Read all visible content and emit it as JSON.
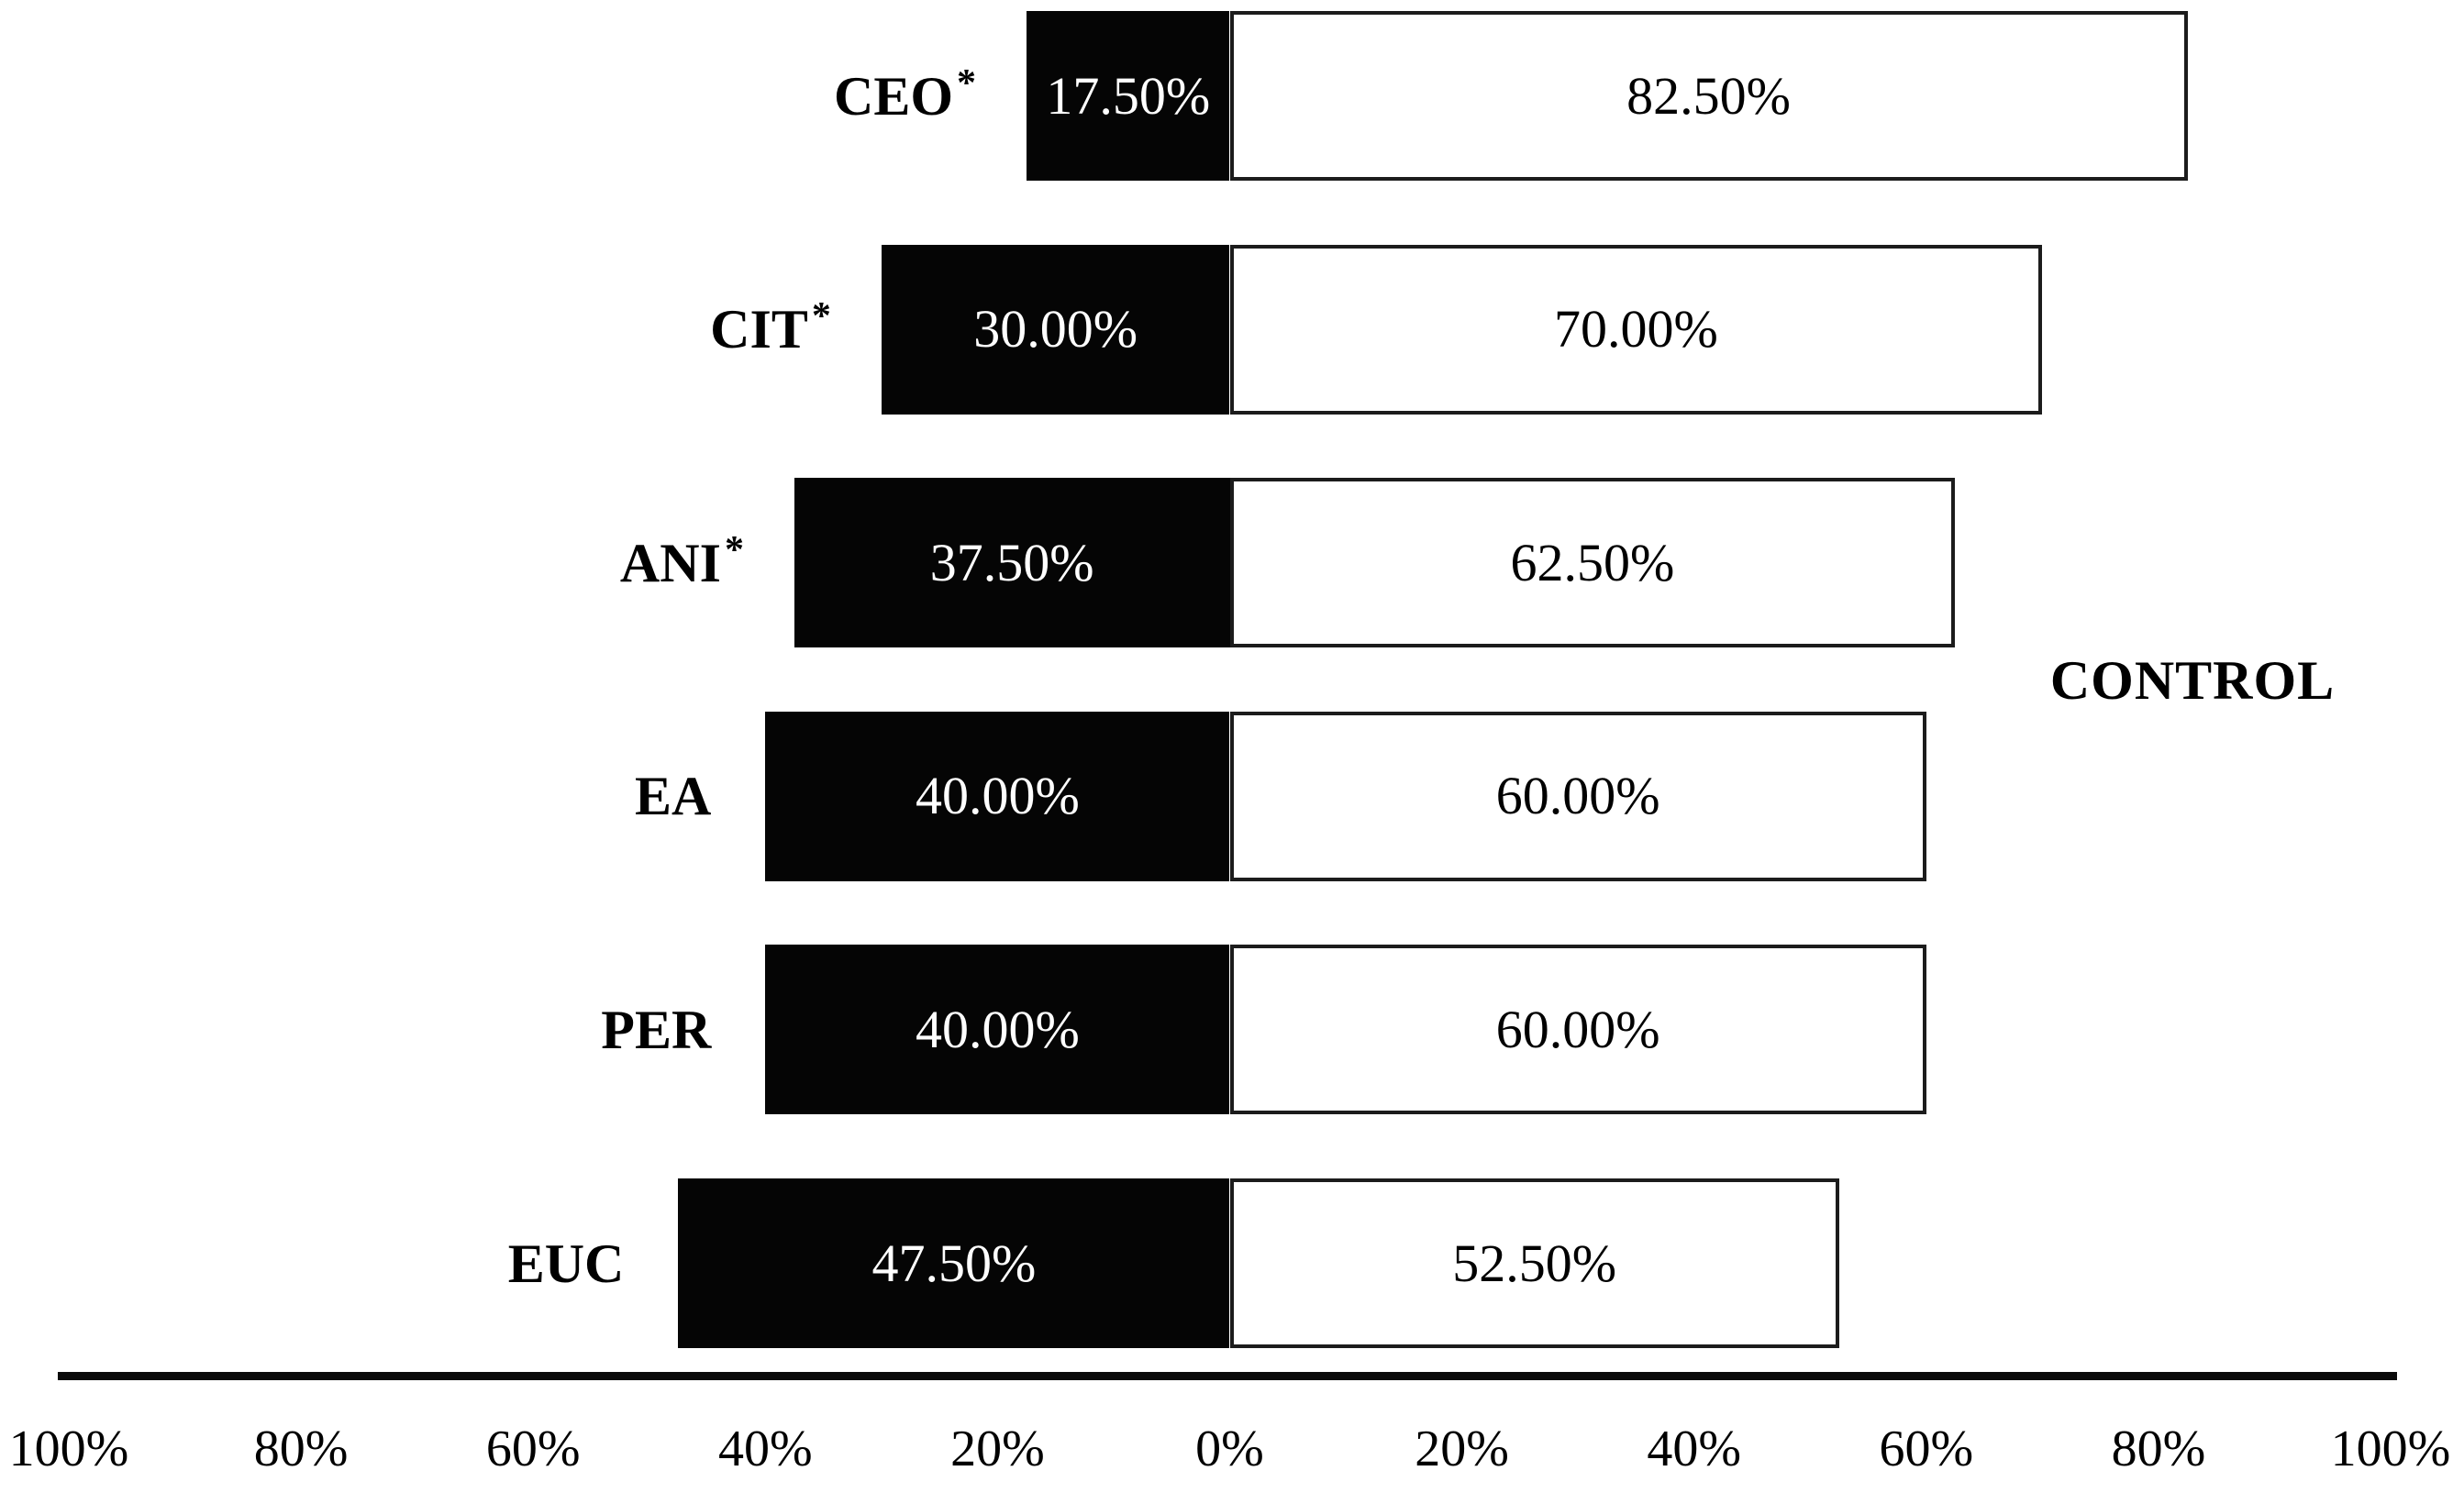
{
  "chart_data": {
    "type": "bar",
    "variant": "horizontal-diverging-stacked",
    "title": "",
    "group_label": "CONTROL",
    "legend": "none",
    "grid": "off",
    "axis_range": [
      -100,
      100
    ],
    "axis_tick_step": 20,
    "axis_ticks": [
      "100%",
      "80%",
      "60%",
      "40%",
      "20%",
      "0%",
      "20%",
      "40%",
      "60%",
      "80%",
      "100%"
    ],
    "colors": {
      "left_bar_fill": "#050505",
      "left_bar_text": "#ffffff",
      "right_bar_fill": "#ffffff",
      "right_bar_border": "#1c1c1c",
      "right_bar_text": "#000000",
      "axis_line": "#0a0a0a",
      "label_text": "#000000"
    },
    "categories": [
      "CEO*",
      "CIT*",
      "ANI*",
      "EA",
      "PER",
      "EUC"
    ],
    "series": [
      {
        "name": "left-black",
        "values": [
          17.5,
          30.0,
          37.5,
          40.0,
          40.0,
          47.5
        ]
      },
      {
        "name": "right-white",
        "values": [
          82.5,
          70.0,
          62.5,
          60.0,
          60.0,
          52.5
        ]
      }
    ],
    "rows": [
      {
        "category": "CEO",
        "star": "*",
        "left_value": 17.5,
        "left_label": "17.50%",
        "right_value": 82.5,
        "right_label": "82.50%"
      },
      {
        "category": "CIT",
        "star": "*",
        "left_value": 30.0,
        "left_label": "30.00%",
        "right_value": 70.0,
        "right_label": "70.00%"
      },
      {
        "category": "ANI",
        "star": "*",
        "left_value": 37.5,
        "left_label": "37.50%",
        "right_value": 62.5,
        "right_label": "62.50%"
      },
      {
        "category": "EA",
        "star": "",
        "left_value": 40.0,
        "left_label": "40.00%",
        "right_value": 60.0,
        "right_label": "60.00%"
      },
      {
        "category": "PER",
        "star": "",
        "left_value": 40.0,
        "left_label": "40.00%",
        "right_value": 60.0,
        "right_label": "60.00%"
      },
      {
        "category": "EUC",
        "star": "",
        "left_value": 47.5,
        "left_label": "47.50%",
        "right_value": 52.5,
        "right_label": "52.50%"
      }
    ]
  }
}
